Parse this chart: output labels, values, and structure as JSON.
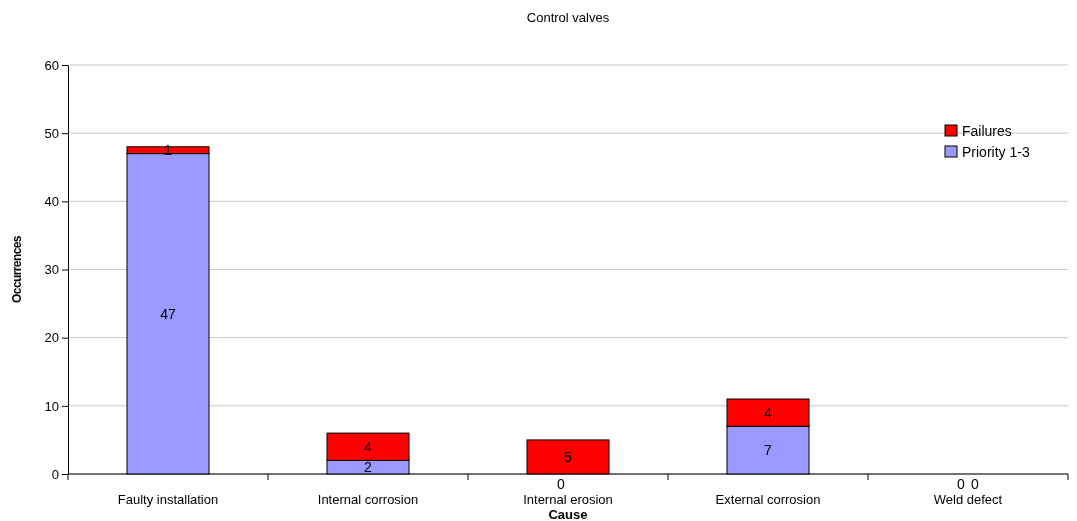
{
  "chart_data": {
    "type": "bar",
    "title": "Control valves",
    "xlabel": "Cause",
    "ylabel": "Occurrences",
    "categories": [
      "Faulty installation",
      "Internal corrosion",
      "Internal erosion",
      "External corrosion",
      "Weld defect"
    ],
    "stacked": true,
    "data_labels": true,
    "grid": "y",
    "legend": "top right",
    "ylim": [
      0,
      60
    ],
    "yticks": [
      0,
      10,
      20,
      30,
      40,
      50,
      60
    ],
    "series": [
      {
        "name": "Priority 1-3",
        "color": "#9999ff",
        "values": [
          47,
          2,
          0,
          7,
          0
        ]
      },
      {
        "name": "Failures",
        "color": "#ff0000",
        "values": [
          1,
          4,
          5,
          4,
          0
        ]
      }
    ]
  }
}
